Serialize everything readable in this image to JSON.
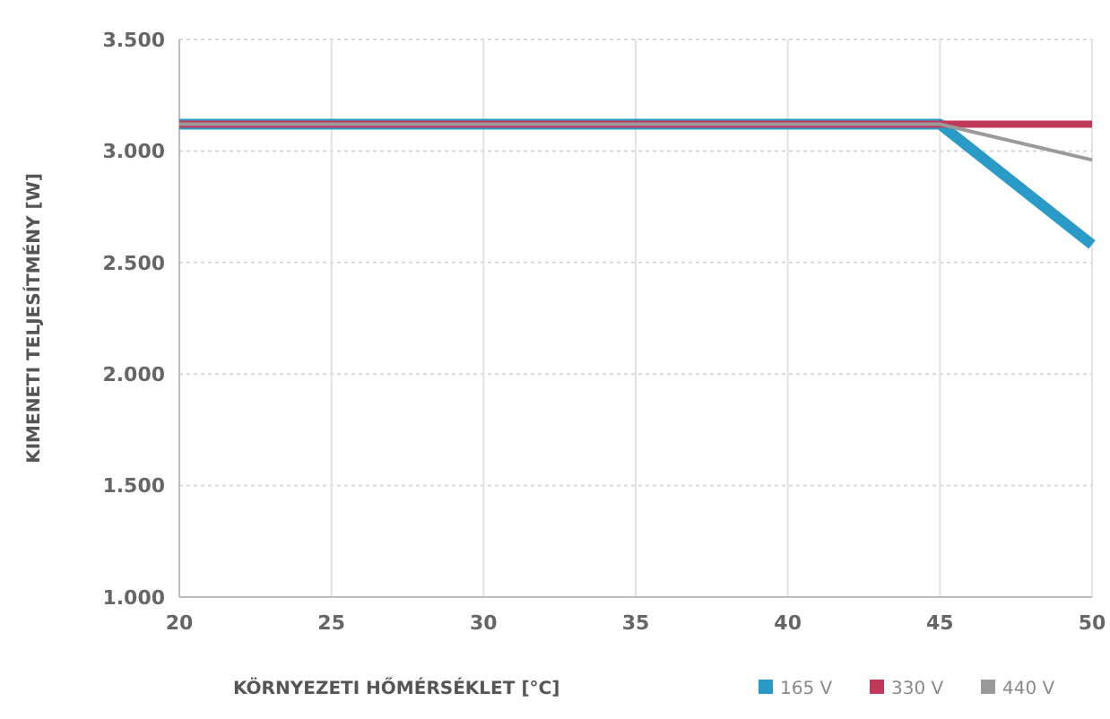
{
  "chart_data": {
    "type": "line",
    "xlabel": "KÖRNYEZETI HŐMÉRSÉKLET [°C]",
    "ylabel": "KIMENETI TELJESÍTMÉNY [W]",
    "series": [
      {
        "name": "165 V",
        "color": "#2a9bc7",
        "x": [
          20,
          45,
          50
        ],
        "values": [
          3120,
          3120,
          2580
        ]
      },
      {
        "name": "330 V",
        "color": "#c0395a",
        "x": [
          20,
          45,
          50
        ],
        "values": [
          3120,
          3120,
          3120
        ]
      },
      {
        "name": "440 V",
        "color": "#9a9a9a",
        "x": [
          20,
          45,
          50
        ],
        "values": [
          3120,
          3120,
          2960
        ]
      }
    ],
    "xlim": [
      20,
      50
    ],
    "xticks": [
      20,
      25,
      30,
      35,
      40,
      45,
      50
    ],
    "ylim": [
      1000,
      3500
    ],
    "yticks": [
      {
        "value": 1000,
        "label": "1.000"
      },
      {
        "value": 1500,
        "label": "1.500"
      },
      {
        "value": 2000,
        "label": "2.000"
      },
      {
        "value": 2500,
        "label": "2.500"
      },
      {
        "value": 3000,
        "label": "3.000"
      },
      {
        "value": 3500,
        "label": "3.500"
      }
    ],
    "grid": true,
    "legend": "bottom right",
    "marker": "none",
    "line_style": "solid"
  }
}
